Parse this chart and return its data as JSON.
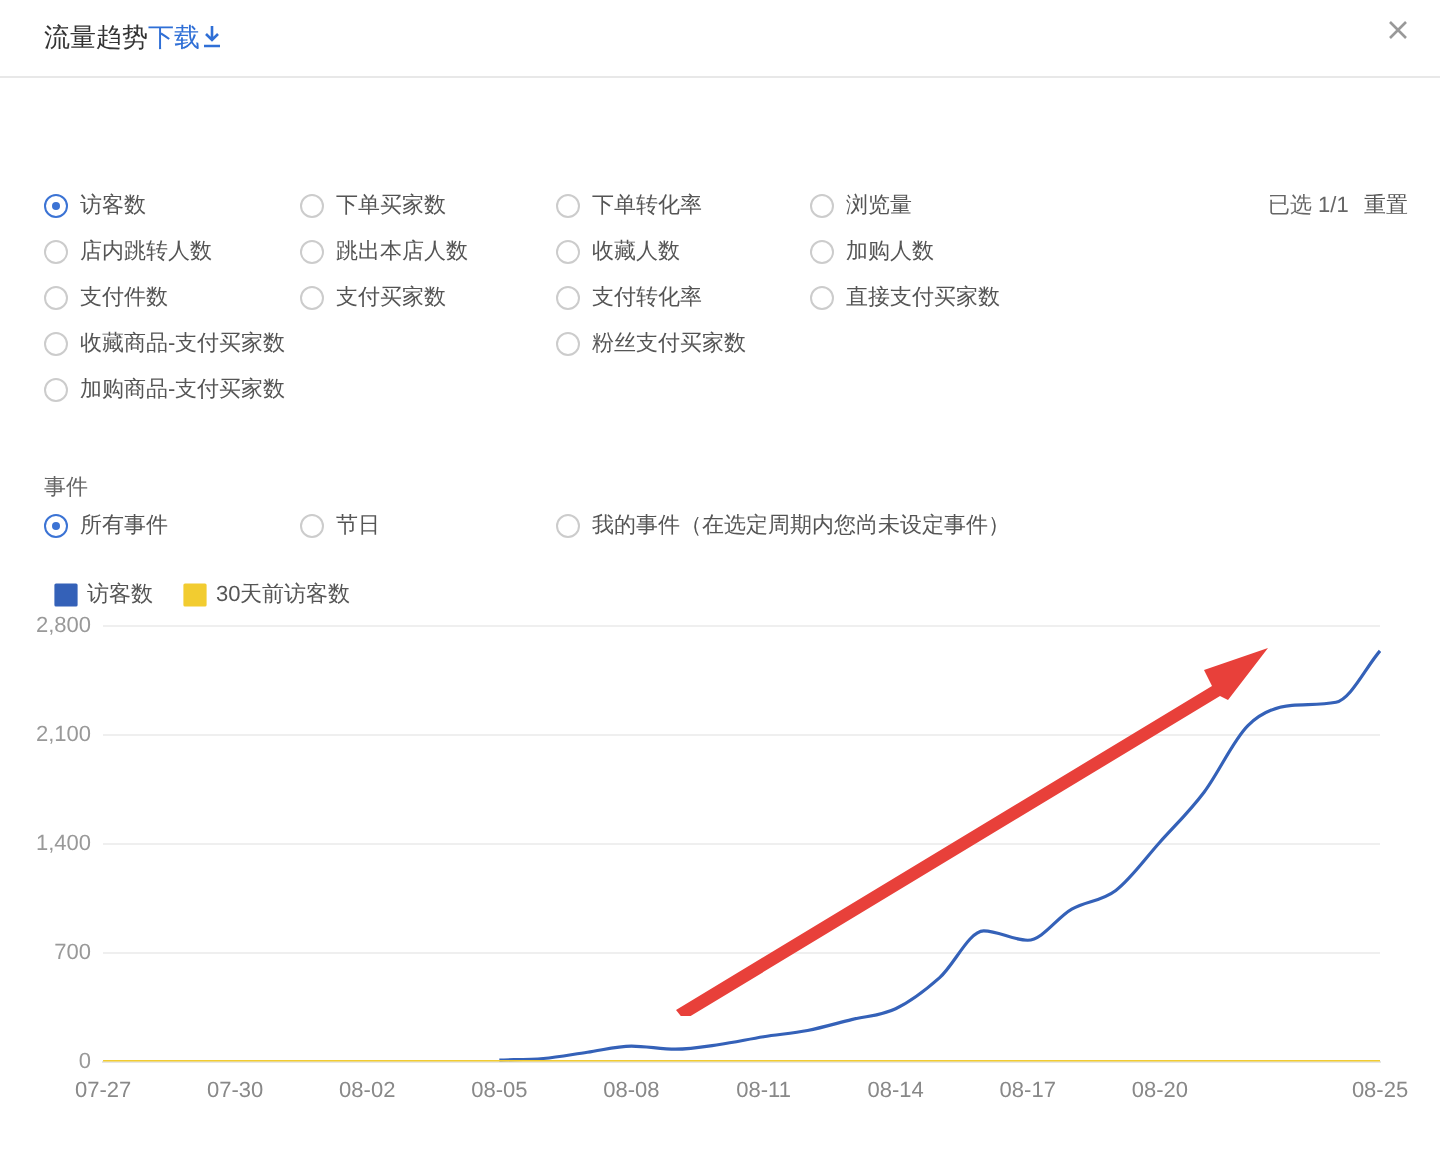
{
  "chart_data": [
    {
      "type": "other",
      "title": "流量趋势",
      "subtitle": "下载",
      "annotations": [
        "访客数",
        "下单买家数",
        "下单转化率",
        "浏览量",
        "店内跳转人数",
        "跳出本店人数",
        "收藏人数",
        "加购人数",
        "支付件数",
        "支付买家数",
        "支付转化率",
        "直接支付买家数",
        "收藏商品-支付买家数",
        "粉丝支付买家数",
        "加购商品-支付买家数",
        "已选 1/1",
        "重置",
        "事件",
        "所有事件",
        "节日",
        "我的事件（在选定周期内您尚未设定事件）"
      ]
    },
    {
      "type": "line",
      "categories": [
        "07-27",
        null,
        null,
        "07-30",
        null,
        null,
        "08-02",
        null,
        null,
        "08-05",
        null,
        null,
        "08-08",
        null,
        null,
        "08-11",
        null,
        null,
        "08-14",
        null,
        null,
        "08-17",
        null,
        null,
        "08-20",
        null,
        null,
        null,
        null,
        "08-25"
      ],
      "series": [
        {
          "name": "访客数",
          "color": "#3461b8",
          "values": [
            null,
            null,
            null,
            null,
            null,
            null,
            null,
            null,
            null,
            10,
            20,
            60,
            100,
            80,
            110,
            160,
            200,
            270,
            340,
            540,
            840,
            780,
            980,
            1100,
            1410,
            1730,
            2160,
            2290,
            2310,
            2640
          ]
        },
        {
          "name": "30天前访客数",
          "color": "#f2cc30",
          "values": [
            0,
            0,
            0,
            0,
            0,
            0,
            0,
            0,
            0,
            0,
            0,
            0,
            0,
            0,
            0,
            0,
            0,
            0,
            0,
            0,
            0,
            0,
            0,
            0,
            0,
            0,
            0,
            0,
            0,
            0
          ]
        }
      ],
      "ylim": [
        0,
        2800
      ],
      "yticks": [
        0,
        700,
        {
          "value": 1400,
          "label": "1,400"
        },
        {
          "value": 2100,
          "label": "2,100"
        },
        {
          "value": 2800,
          "label": "2,800"
        }
      ],
      "grid": "y",
      "legend": "top left",
      "marker": "none"
    }
  ]
}
